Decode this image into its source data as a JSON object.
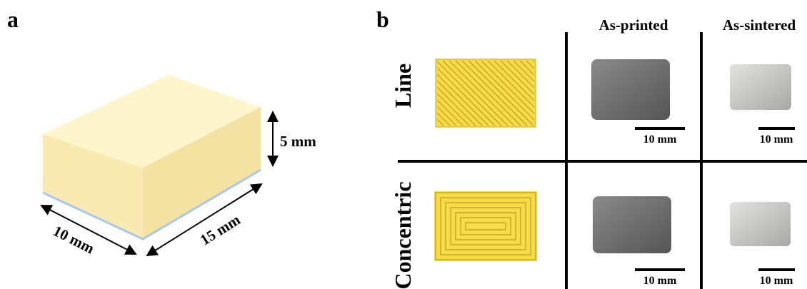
{
  "panel_a": {
    "label": "a",
    "dimensions": {
      "height": "5 mm",
      "width": "10 mm",
      "length": "15 mm"
    }
  },
  "panel_b": {
    "label": "b",
    "columns": [
      "As-printed",
      "As-sintered"
    ],
    "rows": [
      "Line",
      "Concentric"
    ],
    "scale_bars": [
      [
        "10 mm",
        "10 mm"
      ],
      [
        "10 mm",
        "10 mm"
      ]
    ]
  }
}
